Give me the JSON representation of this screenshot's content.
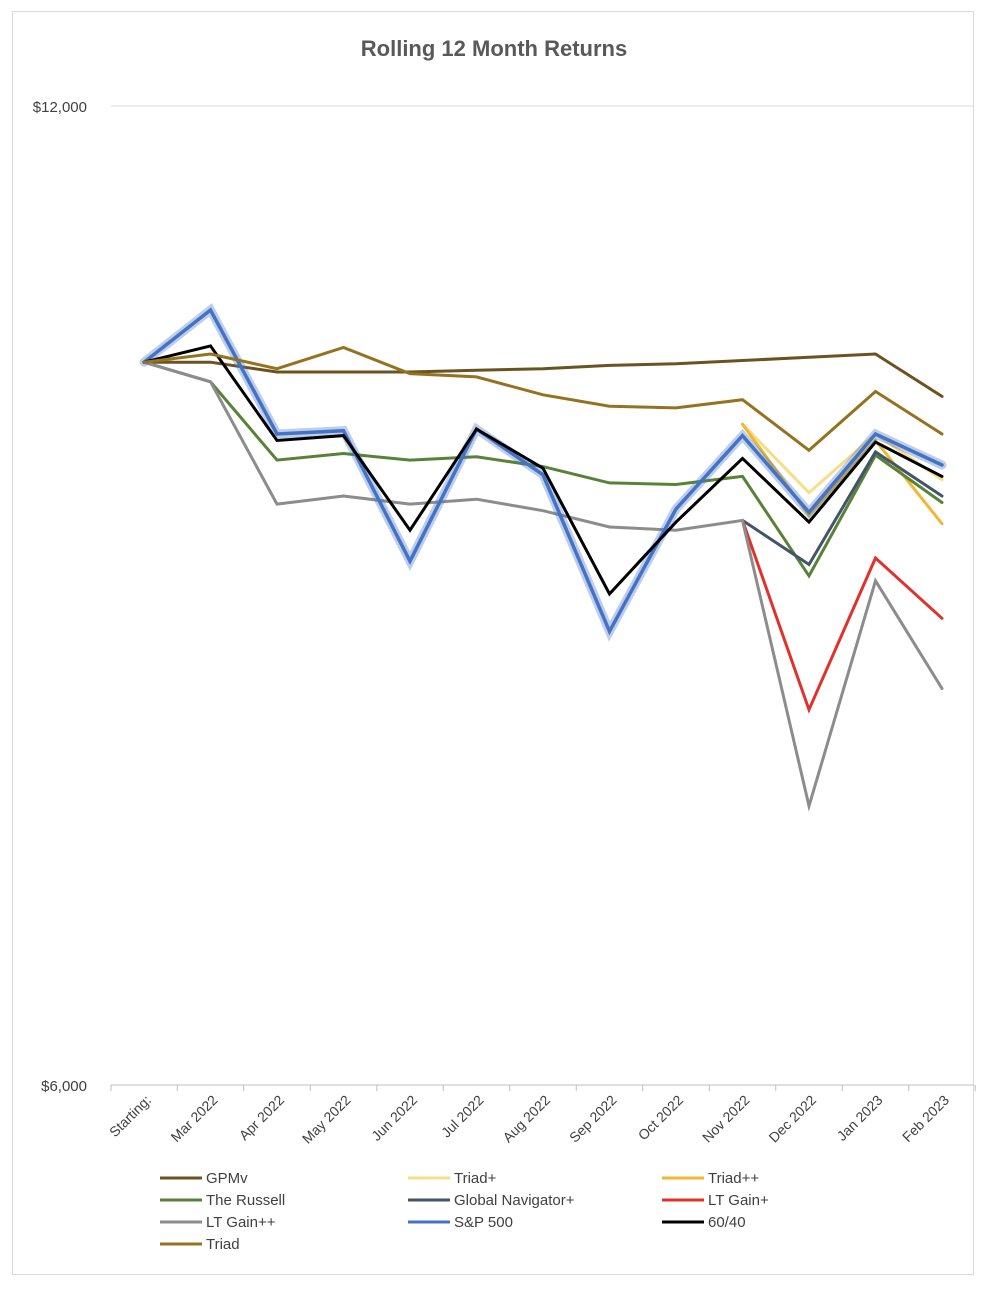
{
  "chart_data": {
    "type": "line",
    "title": "Rolling 12 Month Returns",
    "xlabel": "",
    "ylabel": "",
    "ylim": [
      6000,
      12000
    ],
    "y_ticks": [
      6000,
      12000
    ],
    "y_tick_labels": [
      "$6,000",
      "$12,000"
    ],
    "categories": [
      "Starting:",
      "Mar 2022",
      "Apr 2022",
      "May 2022",
      "Jun 2022",
      "Jul 2022",
      "Aug 2022",
      "Sep 2022",
      "Oct 2022",
      "Nov 2022",
      "Dec 2022",
      "Jan 2023",
      "Feb 2023"
    ],
    "grid": true,
    "legend_position": "bottom",
    "series": [
      {
        "name": "GPMv",
        "color": "#6b5320",
        "width": 3,
        "values": [
          10430,
          10430,
          10370,
          10370,
          10370,
          10380,
          10390,
          10410,
          10420,
          10440,
          10460,
          10480,
          10220
        ]
      },
      {
        "name": "Triad+",
        "color": "#f5dd8a",
        "width": 3,
        "start": 9,
        "values": [
          null,
          null,
          null,
          null,
          null,
          null,
          null,
          null,
          null,
          10050,
          9630,
          9990,
          9710
        ]
      },
      {
        "name": "Triad++",
        "color": "#f0b731",
        "width": 3,
        "start": 9,
        "values": [
          null,
          null,
          null,
          null,
          null,
          null,
          null,
          null,
          null,
          10050,
          9490,
          9950,
          9440
        ]
      },
      {
        "name": "The Russell",
        "color": "#588238",
        "width": 3,
        "values": [
          10430,
          10310,
          9830,
          9870,
          9830,
          9850,
          9790,
          9690,
          9680,
          9730,
          9120,
          9860,
          9570
        ]
      },
      {
        "name": "Global Navigator+",
        "color": "#44546a",
        "width": 3,
        "start": 9,
        "values": [
          null,
          null,
          null,
          null,
          null,
          null,
          null,
          null,
          null,
          9460,
          9190,
          9880,
          9610
        ]
      },
      {
        "name": "LT Gain+",
        "color": "#e0312c",
        "width": 3,
        "start": 9,
        "values": [
          null,
          null,
          null,
          null,
          null,
          null,
          null,
          null,
          null,
          9460,
          8300,
          9230,
          8860
        ]
      },
      {
        "name": "LT Gain++",
        "color": "#8c8c8c",
        "width": 3,
        "values": [
          10430,
          10310,
          9560,
          9610,
          9560,
          9590,
          9520,
          9420,
          9400,
          9460,
          7710,
          9090,
          8430
        ]
      },
      {
        "name": "S&P 500",
        "color": "#4472c4",
        "width": 3.5,
        "glow": true,
        "values": [
          10430,
          10750,
          9990,
          10010,
          9210,
          10020,
          9740,
          8780,
          9530,
          9980,
          9510,
          9990,
          9800
        ]
      },
      {
        "name": "60/40",
        "color": "#000000",
        "width": 3,
        "values": [
          10430,
          10530,
          9950,
          9980,
          9400,
          10020,
          9780,
          9010,
          9450,
          9840,
          9450,
          9940,
          9730
        ]
      },
      {
        "name": "Triad",
        "color": "#957220",
        "width": 3,
        "values": [
          10430,
          10480,
          10390,
          10520,
          10360,
          10340,
          10230,
          10160,
          10150,
          10200,
          9890,
          10250,
          9990
        ]
      }
    ]
  }
}
